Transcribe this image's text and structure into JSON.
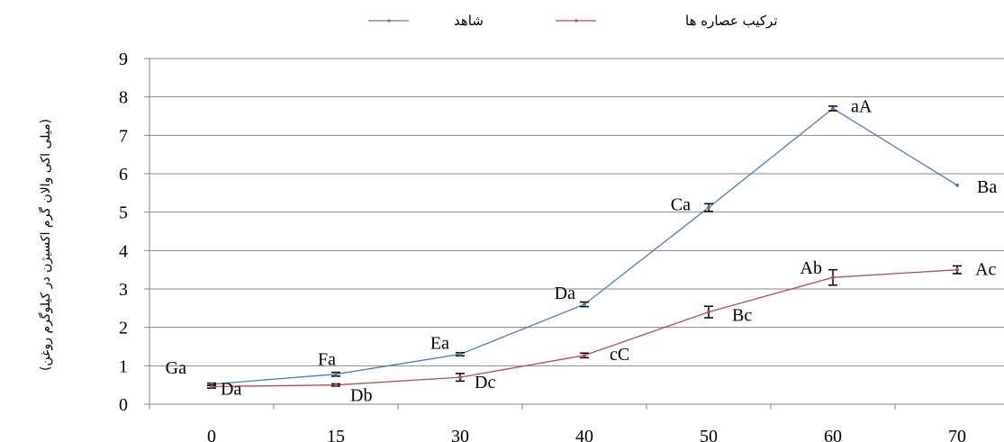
{
  "chart_data": {
    "type": "line",
    "x": [
      0,
      15,
      30,
      40,
      50,
      60,
      70
    ],
    "categories": [
      "0",
      "15",
      "30",
      "40",
      "50",
      "60",
      "70"
    ],
    "ylim": [
      0,
      9
    ],
    "yticks": [
      "0",
      "1",
      "2",
      "3",
      "4",
      "5",
      "6",
      "7",
      "8",
      "9"
    ],
    "ylabel": "(میلی اکی والان گرم اکسیژن در کیلوگرم روغن)",
    "xlabel": "",
    "title": "",
    "grid": "horizontal",
    "legend_position": "top-center",
    "series": [
      {
        "name": "شاهد",
        "color": "#4a7ebb",
        "values": [
          0.52,
          0.78,
          1.3,
          2.6,
          5.12,
          7.7,
          5.7
        ],
        "errors": [
          0.03,
          0.05,
          0.04,
          0.06,
          0.1,
          0.06,
          0.0
        ],
        "labels": [
          "Ga",
          "Fa",
          "Ea",
          "Da",
          "Ca",
          "aA",
          "Ba"
        ]
      },
      {
        "name": "ترکیب عصاره ها",
        "color": "#be4b48",
        "values": [
          0.46,
          0.5,
          0.7,
          1.27,
          2.4,
          3.3,
          3.5
        ],
        "errors": [
          0.04,
          0.03,
          0.1,
          0.06,
          0.15,
          0.2,
          0.1
        ],
        "labels": [
          "Da",
          "Db",
          "Dc",
          "cC",
          "Bc",
          "Ab",
          "Ac"
        ]
      }
    ]
  }
}
